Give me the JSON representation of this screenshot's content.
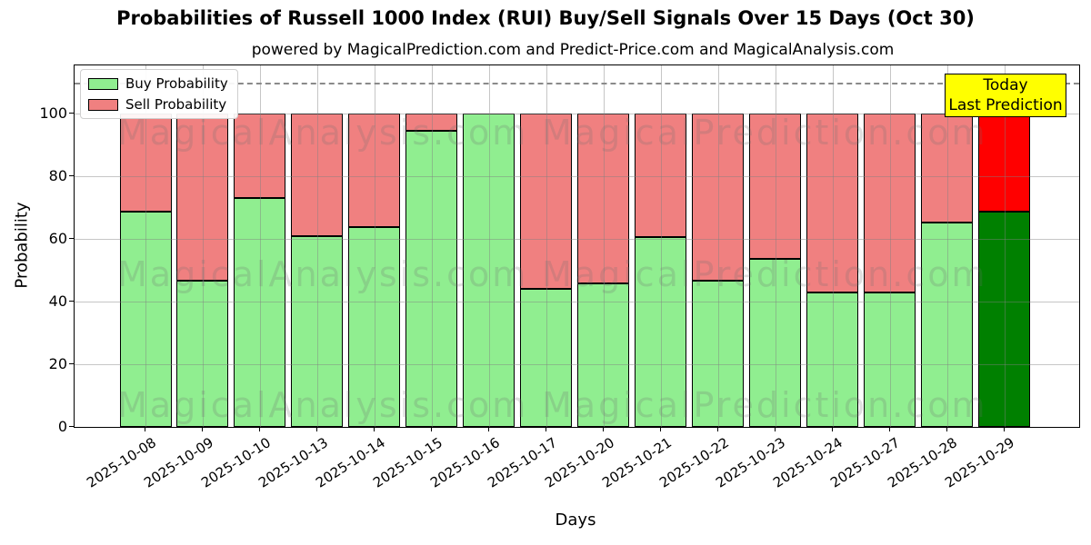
{
  "header": {
    "title": "Probabilities of Russell 1000 Index (RUI) Buy/Sell Signals Over 15 Days (Oct 30)",
    "subtitle": "powered by MagicalPrediction.com and Predict-Price.com and MagicalAnalysis.com"
  },
  "legend": {
    "buy_label": "Buy Probability",
    "sell_label": "Sell Probability"
  },
  "annotation": {
    "line1": "Today",
    "line2": "Last Prediction",
    "bg_color": "#ffff00"
  },
  "watermarks": {
    "left_text": "MagicalAnalysis.com",
    "right_text": "MagicalPrediction.com"
  },
  "colors": {
    "buy": "#90ee90",
    "sell": "#f08080",
    "buy_today": "#008000",
    "sell_today": "#ff0000",
    "grid": "#808080",
    "dashed_line": "#8a8a8a"
  },
  "chart_data": {
    "type": "bar",
    "stacked": true,
    "title": "Probabilities of Russell 1000 Index (RUI) Buy/Sell Signals Over 15 Days (Oct 30)",
    "xlabel": "Days",
    "ylabel": "Probability",
    "ylim": [
      0,
      115.4
    ],
    "yticks": [
      0,
      20,
      40,
      60,
      80,
      100
    ],
    "grid": true,
    "legend_position": "upper left",
    "dashed_line_y": 110,
    "categories": [
      "2025-10-08",
      "2025-10-09",
      "2025-10-10",
      "2025-10-13",
      "2025-10-14",
      "2025-10-15",
      "2025-10-16",
      "2025-10-17",
      "2025-10-20",
      "2025-10-21",
      "2025-10-22",
      "2025-10-23",
      "2025-10-24",
      "2025-10-27",
      "2025-10-28",
      "2025-10-29"
    ],
    "series": [
      {
        "name": "Buy Probability",
        "values": [
          68.6,
          46.7,
          73.2,
          60.8,
          63.8,
          94.4,
          100.0,
          44.1,
          45.8,
          60.6,
          46.6,
          53.6,
          43.0,
          43.0,
          65.3,
          68.6
        ]
      },
      {
        "name": "Sell Probability",
        "values": [
          31.4,
          53.3,
          26.8,
          39.2,
          36.2,
          5.6,
          0.0,
          55.9,
          54.2,
          39.4,
          53.4,
          46.4,
          57.0,
          57.0,
          34.7,
          31.4
        ]
      }
    ],
    "today_bar_index": 15
  }
}
